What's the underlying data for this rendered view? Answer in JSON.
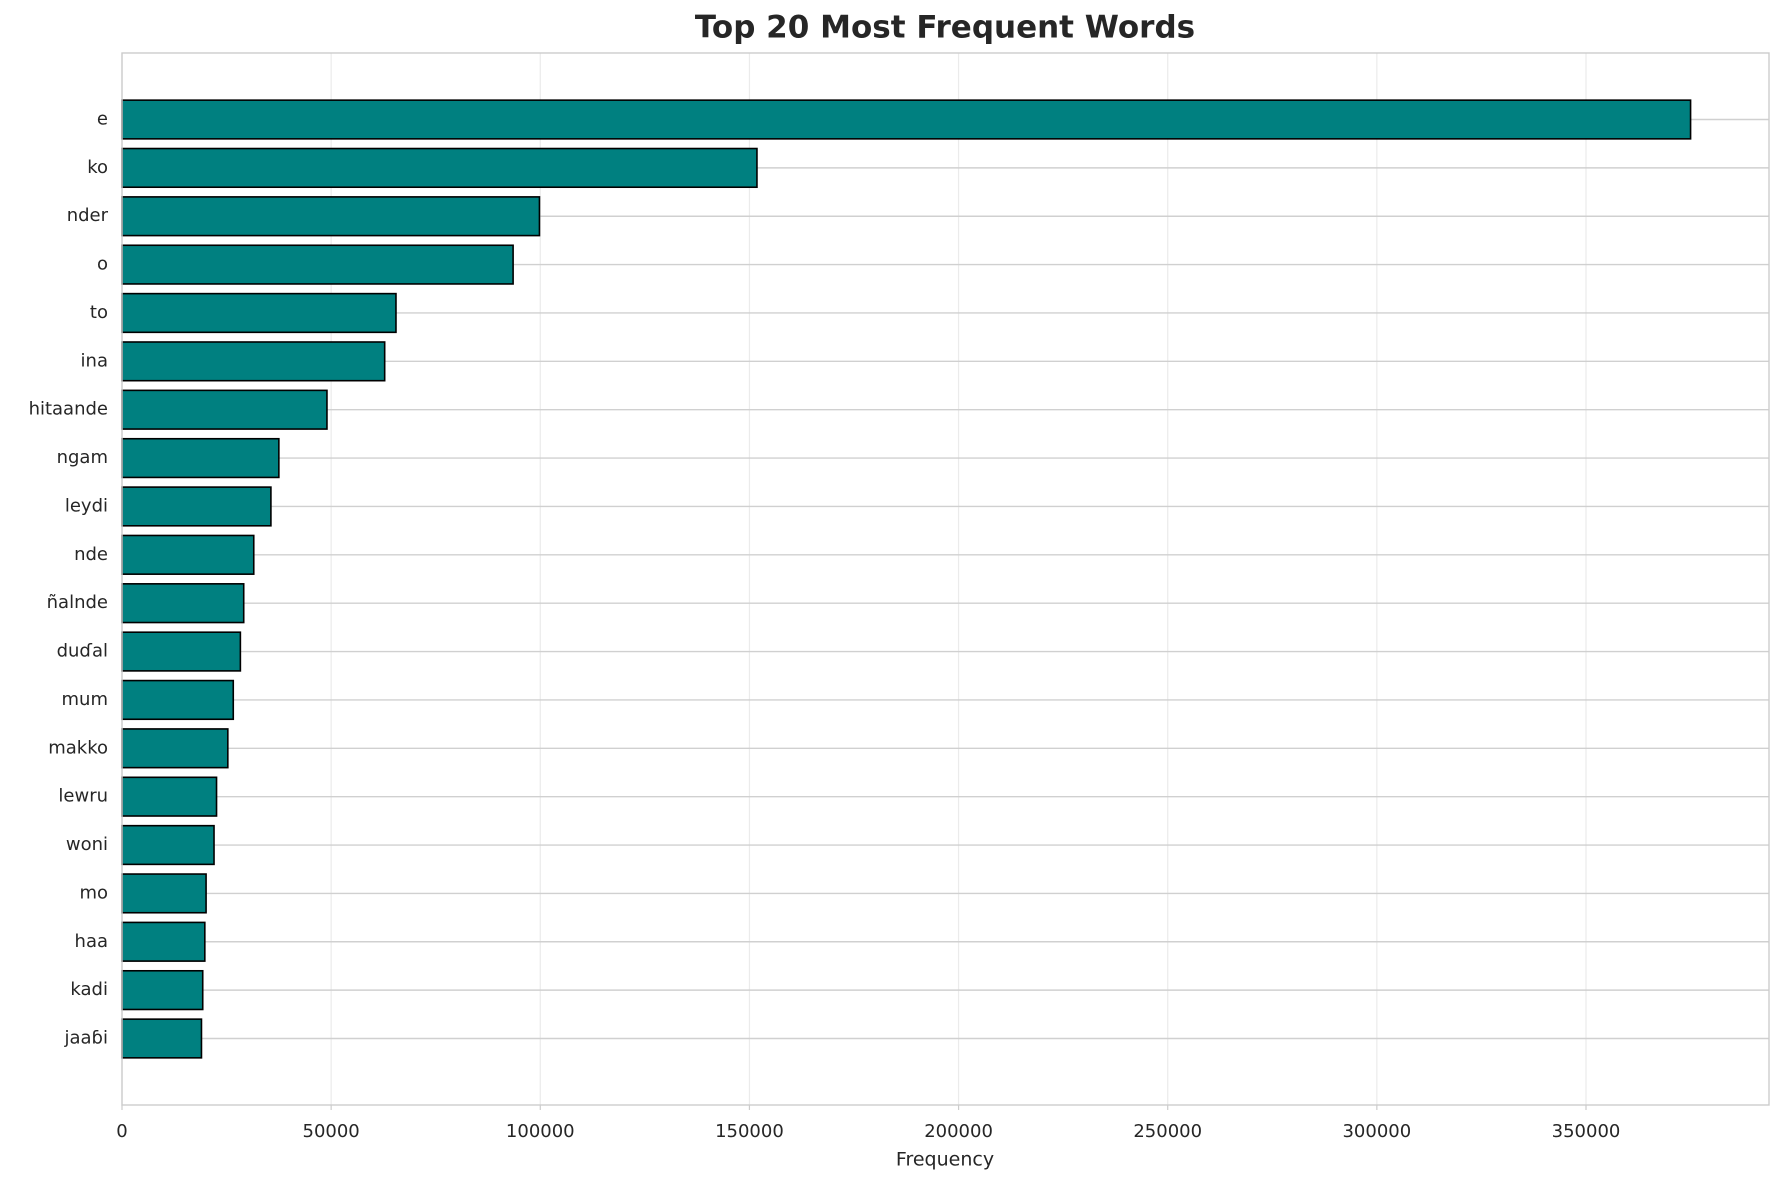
{
  "chart_data": {
    "type": "bar",
    "orientation": "horizontal",
    "title": "Top 20 Most Frequent Words",
    "x_label": "Frequency",
    "categories": [
      "e",
      "ko",
      "nder",
      "o",
      "to",
      "ina",
      "hitaande",
      "ngam",
      "leydi",
      "nde",
      "ñalnde",
      "duɗal",
      "mum",
      "makko",
      "lewru",
      "woni",
      "mo",
      "haa",
      "kadi",
      "jaaɓi"
    ],
    "values": [
      375000,
      151800,
      99800,
      93500,
      65500,
      62800,
      49000,
      37500,
      35600,
      31500,
      29100,
      28300,
      26600,
      25300,
      22600,
      22000,
      20100,
      19800,
      19300,
      19000
    ],
    "color": "#008080",
    "edge_color": "#000000",
    "xlim": [
      0,
      393750
    ],
    "xticks": [
      0,
      50000,
      100000,
      150000,
      200000,
      250000,
      300000,
      350000
    ],
    "grid": true
  }
}
